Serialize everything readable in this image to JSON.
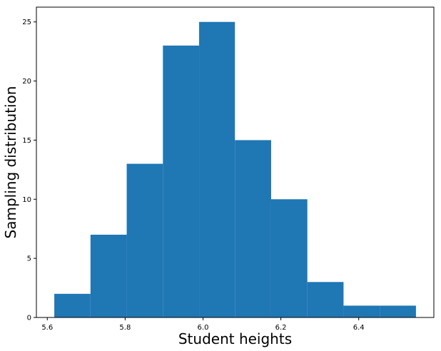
{
  "chart_data": {
    "type": "bar",
    "title": "",
    "xlabel": "Student heights",
    "ylabel": "Sampling distribution",
    "bin_edges": [
      5.618,
      5.711,
      5.804,
      5.897,
      5.99,
      6.082,
      6.175,
      6.268,
      6.361,
      6.454,
      6.547
    ],
    "values": [
      2,
      7,
      13,
      23,
      25,
      15,
      10,
      3,
      1,
      1
    ],
    "bar_color": "#1f77b4",
    "xlim": [
      5.572,
      6.593
    ],
    "ylim": [
      0,
      26.25
    ],
    "x_ticks": [
      5.6,
      5.8,
      6.0,
      6.2,
      6.4
    ],
    "x_tick_labels": [
      "5.6",
      "5.8",
      "6.0",
      "6.2",
      "6.4"
    ],
    "y_ticks": [
      0,
      5,
      10,
      15,
      20,
      25
    ],
    "y_tick_labels": [
      "0",
      "5",
      "10",
      "15",
      "20",
      "25"
    ],
    "grid": false,
    "legend": "none"
  }
}
